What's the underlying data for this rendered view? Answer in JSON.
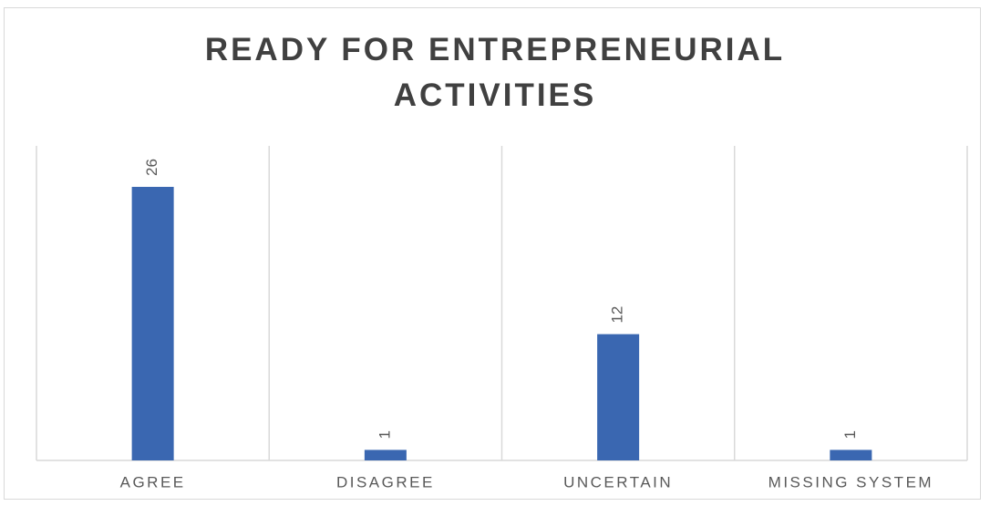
{
  "chart_data": {
    "type": "bar",
    "title": "READY FOR ENTREPRENEURIAL ACTIVITIES",
    "categories": [
      "AGREE",
      "DISAGREE",
      "UNCERTAIN",
      "MISSING SYSTEM"
    ],
    "values": [
      26,
      1,
      12,
      1
    ],
    "color": "#3a67b1",
    "grid": true
  }
}
